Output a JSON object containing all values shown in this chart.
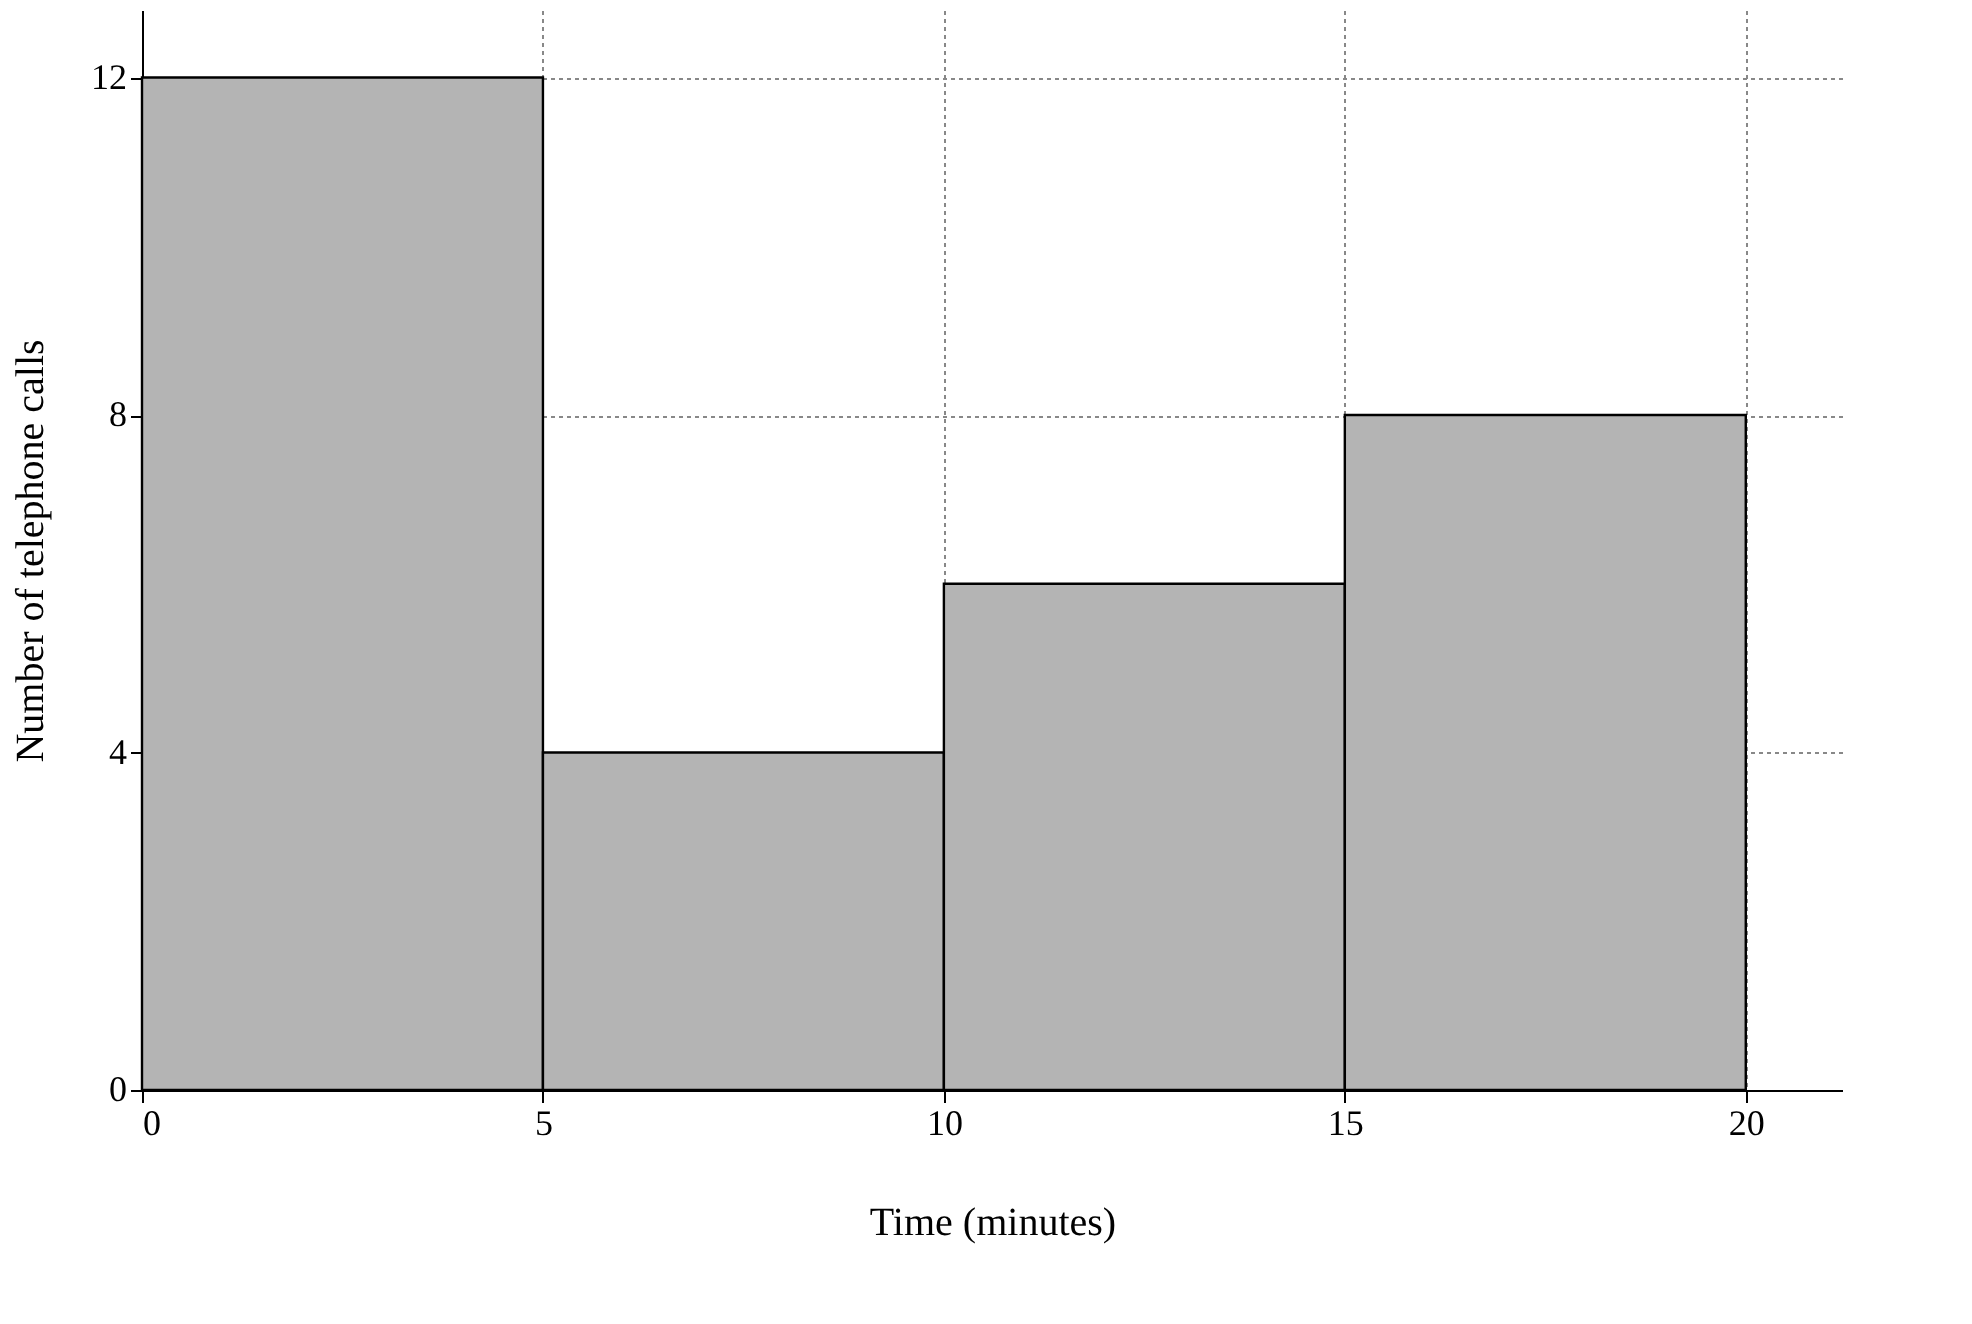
{
  "chart_data": {
    "type": "histogram",
    "xlabel": "Time (minutes)",
    "ylabel": "Number of telephone calls",
    "bins": [
      0,
      5,
      10,
      15,
      20
    ],
    "values": [
      12,
      4,
      6,
      8
    ],
    "color": "#b4b4b4",
    "xlim": [
      0,
      21.2
    ],
    "ylim": [
      0,
      12.8
    ],
    "xticks": [
      0,
      5,
      10,
      15,
      20
    ],
    "yticks": [
      0,
      4,
      8,
      12
    ],
    "grid": true
  }
}
